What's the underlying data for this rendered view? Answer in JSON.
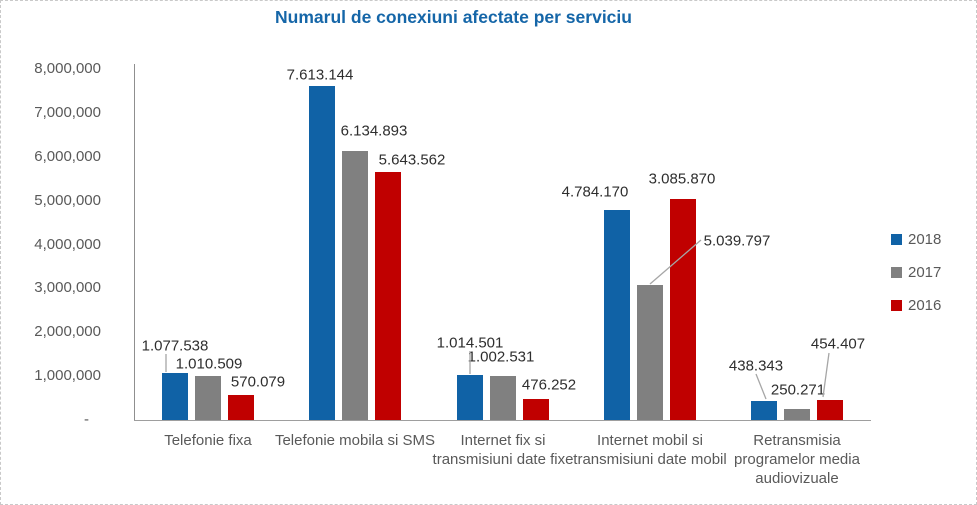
{
  "chart_data": {
    "type": "bar",
    "title": "Numarul de conexiuni afectate per serviciu",
    "legend_position": "right",
    "grid": false,
    "categories": [
      "Telefonie fixa",
      "Telefonie mobila si SMS",
      "Internet fix si transmisiuni date fixe",
      "Internet mobil si transmisiuni date mobil",
      "Retransmisia programelor media audiovizuale"
    ],
    "series": [
      {
        "name": "2018",
        "color": "#1062a6",
        "values": [
          1077538,
          7613144,
          1014501,
          4784170,
          438343
        ],
        "labels": [
          "1.077.538",
          "7.613.144",
          "1.014.501",
          "4.784.170",
          "438.343"
        ]
      },
      {
        "name": "2017",
        "color": "#808080",
        "values": [
          1010509,
          6134893,
          1002531,
          3085870,
          250271
        ],
        "labels": [
          "1.010.509",
          "6.134.893",
          "1.002.531",
          "3.085.870",
          "250.271"
        ]
      },
      {
        "name": "2016",
        "color": "#c00000",
        "values": [
          570079,
          5643562,
          476252,
          5039797,
          454407
        ],
        "labels": [
          "570.079",
          "5.643.562",
          "476.252",
          "5.039.797",
          "454.407"
        ]
      }
    ],
    "y_axis": {
      "min": 0,
      "max": 8000000,
      "ticks": [
        {
          "value": 8000000,
          "label": "8,000,000"
        },
        {
          "value": 7000000,
          "label": "7,000,000"
        },
        {
          "value": 6000000,
          "label": "6,000,000"
        },
        {
          "value": 5000000,
          "label": "5,000,000"
        },
        {
          "value": 4000000,
          "label": "4,000,000"
        },
        {
          "value": 3000000,
          "label": "3,000,000"
        },
        {
          "value": 2000000,
          "label": "2,000,000"
        },
        {
          "value": 1000000,
          "label": "1,000,000"
        },
        {
          "value": 0,
          "label": "-"
        }
      ]
    }
  }
}
